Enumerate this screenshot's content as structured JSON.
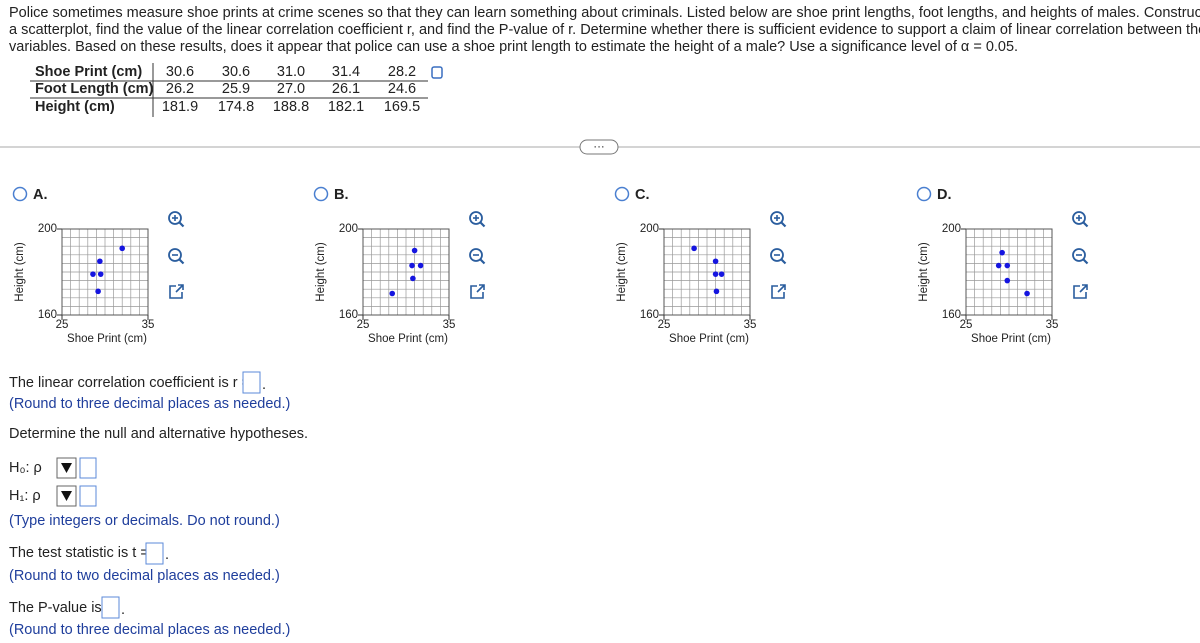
{
  "problem_lines": [
    "Police sometimes measure shoe prints at crime scenes so that they can learn something about criminals. Listed below are shoe print lengths, foot lengths, and heights of males. Construct",
    "a scatterplot, find the value of the linear correlation coefficient r, and find the P-value of r. Determine whether there is sufficient evidence to support a claim of linear correlation between the two",
    "variables. Based on these results, does it appear that police can use a shoe print length to estimate the height of a male? Use a significance level of α = 0.05."
  ],
  "table": {
    "rows": [
      [
        "Shoe Print (cm)",
        "30.6",
        "30.6",
        "31.0",
        "31.4",
        "28.2"
      ],
      [
        "Foot Length (cm)",
        "26.2",
        "25.9",
        "27.0",
        "26.1",
        "24.6"
      ],
      [
        "Height (cm)",
        "181.9",
        "174.8",
        "188.8",
        "182.1",
        "169.5"
      ]
    ]
  },
  "options": [
    {
      "letter": "A.",
      "y_label": "Height (cm)",
      "x_label": "Shoe Print (cm)",
      "xlim": [
        25,
        35
      ],
      "ylim": [
        160,
        200
      ],
      "xticks": [
        25,
        35
      ],
      "yticks": [
        160,
        200
      ],
      "x": [
        32.0,
        29.4,
        28.6,
        29.5,
        29.2
      ],
      "y": [
        191,
        185,
        179,
        179,
        171
      ]
    },
    {
      "letter": "B.",
      "y_label": "Height (cm)",
      "x_label": "Shoe Print (cm)",
      "xlim": [
        25,
        35
      ],
      "ylim": [
        160,
        200
      ],
      "xticks": [
        25,
        35
      ],
      "yticks": [
        160,
        200
      ],
      "x": [
        31.0,
        30.7,
        31.7,
        30.8,
        28.4
      ],
      "y": [
        190,
        183,
        183,
        177,
        170
      ]
    },
    {
      "letter": "C.",
      "y_label": "Height (cm)",
      "x_label": "Shoe Print (cm)",
      "xlim": [
        25,
        35
      ],
      "ylim": [
        160,
        200
      ],
      "xticks": [
        25,
        35
      ],
      "yticks": [
        160,
        200
      ],
      "x": [
        28.5,
        31.0,
        31.0,
        31.7,
        31.1
      ],
      "y": [
        191,
        185,
        179,
        179,
        171
      ]
    },
    {
      "letter": "D.",
      "y_label": "Height (cm)",
      "x_label": "Shoe Print (cm)",
      "xlim": [
        25,
        35
      ],
      "ylim": [
        160,
        200
      ],
      "xticks": [
        25,
        35
      ],
      "yticks": [
        160,
        200
      ],
      "x": [
        29.2,
        28.8,
        29.8,
        29.8,
        32.1
      ],
      "y": [
        189,
        183,
        183,
        176,
        170
      ]
    }
  ],
  "separator": "···",
  "questions": {
    "r_prompt": "The linear correlation coefficient is r =",
    "r_note": "(Round to three decimal places as needed.)",
    "hyp_prompt": "Determine the null and alternative hypotheses.",
    "h0": "H₀: ρ",
    "h1": "H₁: ρ",
    "hyp_note": "(Type integers or decimals. Do not round.)",
    "t_prompt": "The test statistic is t =",
    "t_note": "(Round to two decimal places as needed.)",
    "p_prompt": "The P-value is",
    "p_note": "(Round to three decimal places as needed.)"
  }
}
